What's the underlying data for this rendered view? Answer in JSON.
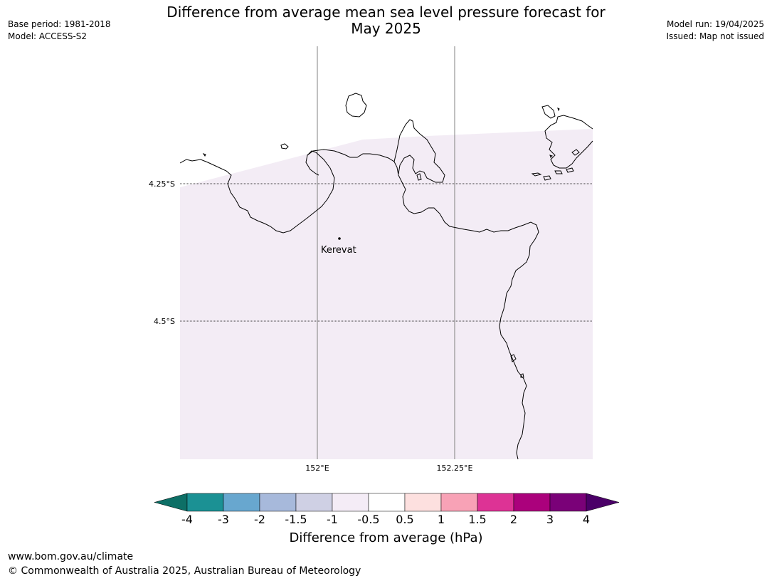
{
  "header": {
    "title_line1": "Difference from average mean sea level pressure forecast for",
    "title_line2": "May 2025",
    "base_period": "Base period: 1981-2018",
    "model": "Model: ACCESS-S2",
    "model_run": "Model run: 19/04/2025",
    "issued": "Issued: Map not issued"
  },
  "map": {
    "lat_labels": [
      "4.25°S",
      "4.5°S"
    ],
    "lon_labels": [
      "152°E",
      "152.25°E"
    ],
    "place_label": "Kerevat",
    "land_fill_color": "#f3ecf5",
    "coast_color": "#000000"
  },
  "colorbar": {
    "tick_labels": [
      "-4",
      "-3",
      "-2",
      "-1.5",
      "-1",
      "-0.5",
      "0.5",
      "1",
      "1.5",
      "2",
      "3",
      "4"
    ],
    "colors": [
      "#0d6f66",
      "#1b9194",
      "#68a7cf",
      "#a7b9db",
      "#cfd0e4",
      "#f4ecf6",
      "#ffffff",
      "#fde0df",
      "#f8a2b6",
      "#dd3395",
      "#ab017c",
      "#7a0178",
      "#4b0068"
    ],
    "label": "Difference from average (hPa)"
  },
  "footer": {
    "url": "www.bom.gov.au/climate",
    "copyright": "© Commonwealth of Australia 2025, Australian Bureau of Meteorology"
  }
}
